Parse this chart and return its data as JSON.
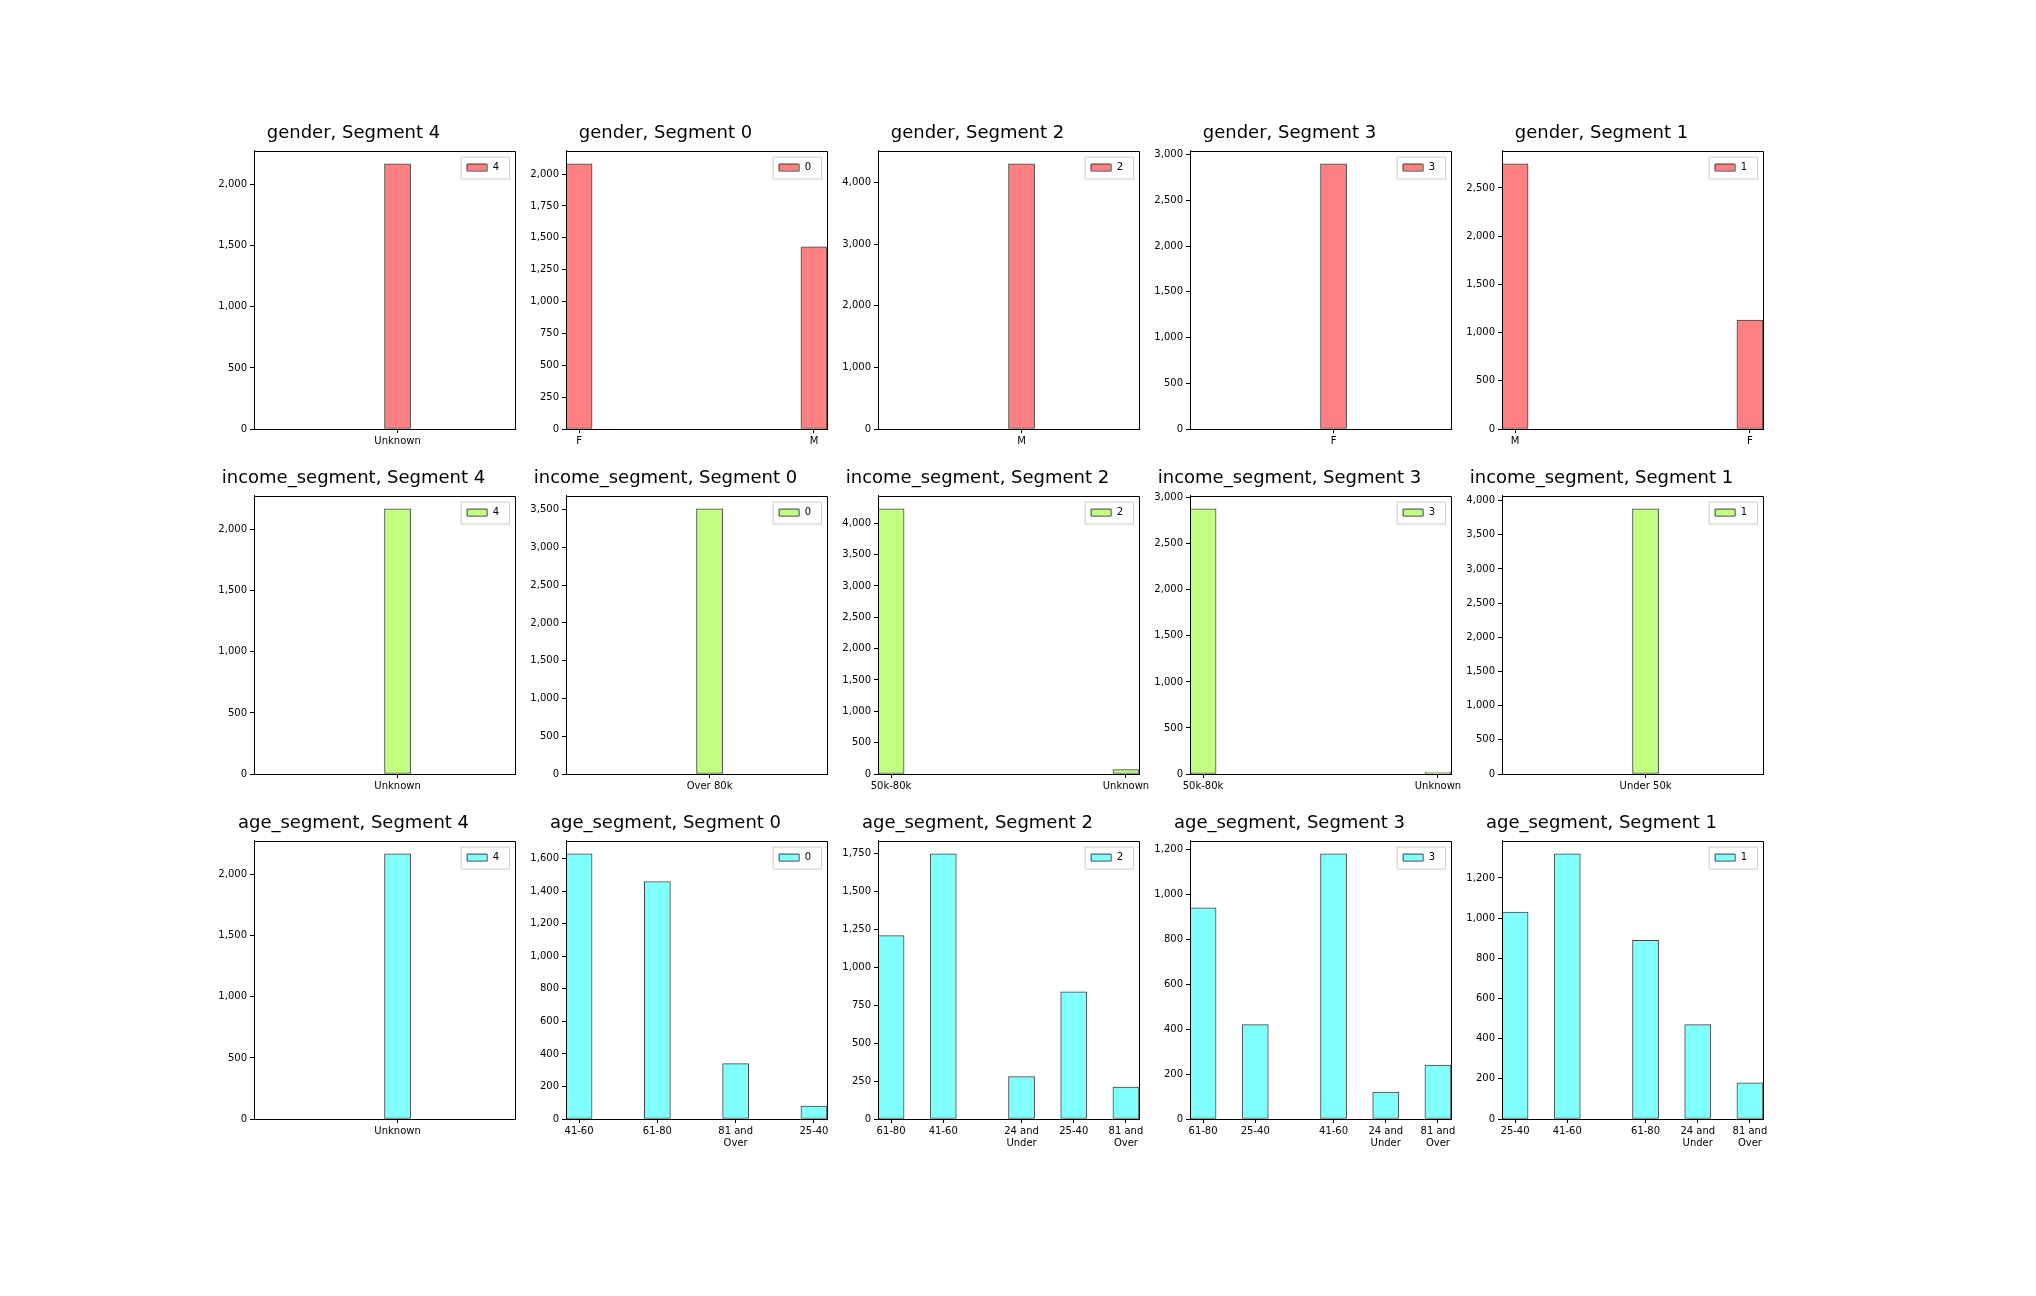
{
  "chart_data": [
    {
      "type": "bar",
      "title": "gender, Segment 4",
      "categories": [
        null,
        null,
        null,
        null,
        null,
        "Unknown",
        null,
        null,
        null,
        null
      ],
      "series": [
        {
          "name": "4",
          "color": "#ff8080",
          "values": [
            null,
            null,
            null,
            null,
            null,
            2170,
            null,
            null,
            null,
            null
          ]
        }
      ],
      "ylim": [
        0,
        2278.5
      ],
      "yticks": [
        0,
        500,
        {
          "value": 1000,
          "label": "1,000"
        },
        {
          "value": 1500,
          "label": "1,500"
        },
        {
          "value": 2000,
          "label": "2,000"
        }
      ],
      "legend": "top right"
    },
    {
      "type": "bar",
      "title": "gender, Segment 0",
      "categories": [
        "F",
        null,
        null,
        null,
        null,
        null,
        null,
        null,
        null,
        "M"
      ],
      "series": [
        {
          "name": "0",
          "color": "#ff8080",
          "values": [
            2080,
            null,
            null,
            null,
            null,
            null,
            null,
            null,
            null,
            1430
          ]
        }
      ],
      "ylim": [
        0,
        2184
      ],
      "yticks": [
        0,
        250,
        500,
        750,
        {
          "value": 1000,
          "label": "1,000"
        },
        {
          "value": 1250,
          "label": "1,250"
        },
        {
          "value": 1500,
          "label": "1,500"
        },
        {
          "value": 1750,
          "label": "1,750"
        },
        {
          "value": 2000,
          "label": "2,000"
        }
      ],
      "legend": "top right"
    },
    {
      "type": "bar",
      "title": "gender, Segment 2",
      "categories": [
        null,
        null,
        null,
        null,
        null,
        "M",
        null,
        null,
        null,
        null
      ],
      "series": [
        {
          "name": "2",
          "color": "#ff8080",
          "values": [
            null,
            null,
            null,
            null,
            null,
            4300,
            null,
            null,
            null,
            null
          ]
        }
      ],
      "ylim": [
        0,
        4515
      ],
      "yticks": [
        0,
        {
          "value": 1000,
          "label": "1,000"
        },
        {
          "value": 2000,
          "label": "2,000"
        },
        {
          "value": 3000,
          "label": "3,000"
        },
        {
          "value": 4000,
          "label": "4,000"
        }
      ],
      "legend": "top right"
    },
    {
      "type": "bar",
      "title": "gender, Segment 3",
      "categories": [
        null,
        null,
        null,
        null,
        null,
        "F",
        null,
        null,
        null,
        null
      ],
      "series": [
        {
          "name": "3",
          "color": "#ff8080",
          "values": [
            null,
            null,
            null,
            null,
            null,
            2900,
            null,
            null,
            null,
            null
          ]
        }
      ],
      "ylim": [
        0,
        3045
      ],
      "yticks": [
        0,
        500,
        {
          "value": 1000,
          "label": "1,000"
        },
        {
          "value": 1500,
          "label": "1,500"
        },
        {
          "value": 2000,
          "label": "2,000"
        },
        {
          "value": 2500,
          "label": "2,500"
        },
        {
          "value": 3000,
          "label": "3,000"
        }
      ],
      "legend": "top right"
    },
    {
      "type": "bar",
      "title": "gender, Segment 1",
      "categories": [
        "M",
        null,
        null,
        null,
        null,
        null,
        null,
        null,
        null,
        "F"
      ],
      "series": [
        {
          "name": "1",
          "color": "#ff8080",
          "values": [
            2750,
            null,
            null,
            null,
            null,
            null,
            null,
            null,
            null,
            1130
          ]
        }
      ],
      "ylim": [
        0,
        2887.5
      ],
      "yticks": [
        0,
        500,
        {
          "value": 1000,
          "label": "1,000"
        },
        {
          "value": 1500,
          "label": "1,500"
        },
        {
          "value": 2000,
          "label": "2,000"
        },
        {
          "value": 2500,
          "label": "2,500"
        }
      ],
      "legend": "top right"
    },
    {
      "type": "bar",
      "title": "income_segment, Segment 4",
      "categories": [
        null,
        null,
        null,
        null,
        null,
        "Unknown",
        null,
        null,
        null,
        null
      ],
      "series": [
        {
          "name": "4",
          "color": "#c0ff80",
          "values": [
            null,
            null,
            null,
            null,
            null,
            2170,
            null,
            null,
            null,
            null
          ]
        }
      ],
      "ylim": [
        0,
        2278.5
      ],
      "yticks": [
        0,
        500,
        {
          "value": 1000,
          "label": "1,000"
        },
        {
          "value": 1500,
          "label": "1,500"
        },
        {
          "value": 2000,
          "label": "2,000"
        }
      ],
      "legend": "top right"
    },
    {
      "type": "bar",
      "title": "income_segment, Segment 0",
      "categories": [
        null,
        null,
        null,
        null,
        null,
        "Over 80k",
        null,
        null,
        null,
        null
      ],
      "series": [
        {
          "name": "0",
          "color": "#c0ff80",
          "values": [
            null,
            null,
            null,
            null,
            null,
            3510,
            null,
            null,
            null,
            null
          ]
        }
      ],
      "ylim": [
        0,
        3685.5
      ],
      "yticks": [
        0,
        500,
        {
          "value": 1000,
          "label": "1,000"
        },
        {
          "value": 1500,
          "label": "1,500"
        },
        {
          "value": 2000,
          "label": "2,000"
        },
        {
          "value": 2500,
          "label": "2,500"
        },
        {
          "value": 3000,
          "label": "3,000"
        },
        {
          "value": 3500,
          "label": "3,500"
        }
      ],
      "legend": "top right"
    },
    {
      "type": "bar",
      "title": "income_segment, Segment 2",
      "categories": [
        "50k-80k",
        null,
        null,
        null,
        null,
        null,
        null,
        null,
        null,
        "Unknown"
      ],
      "series": [
        {
          "name": "2",
          "color": "#c0ff80",
          "values": [
            4230,
            null,
            null,
            null,
            null,
            null,
            null,
            null,
            null,
            70
          ]
        }
      ],
      "ylim": [
        0,
        4441.5
      ],
      "yticks": [
        0,
        500,
        {
          "value": 1000,
          "label": "1,000"
        },
        {
          "value": 1500,
          "label": "1,500"
        },
        {
          "value": 2000,
          "label": "2,000"
        },
        {
          "value": 2500,
          "label": "2,500"
        },
        {
          "value": 3000,
          "label": "3,000"
        },
        {
          "value": 3500,
          "label": "3,500"
        },
        {
          "value": 4000,
          "label": "4,000"
        }
      ],
      "legend": "top right"
    },
    {
      "type": "bar",
      "title": "income_segment, Segment 3",
      "categories": [
        "50k-80k",
        null,
        null,
        null,
        null,
        null,
        null,
        null,
        null,
        "Unknown"
      ],
      "series": [
        {
          "name": "3",
          "color": "#c0ff80",
          "values": [
            2880,
            null,
            null,
            null,
            null,
            null,
            null,
            null,
            null,
            20
          ]
        }
      ],
      "ylim": [
        0,
        3024
      ],
      "yticks": [
        0,
        500,
        {
          "value": 1000,
          "label": "1,000"
        },
        {
          "value": 1500,
          "label": "1,500"
        },
        {
          "value": 2000,
          "label": "2,000"
        },
        {
          "value": 2500,
          "label": "2,500"
        },
        {
          "value": 3000,
          "label": "3,000"
        }
      ],
      "legend": "top right"
    },
    {
      "type": "bar",
      "title": "income_segment, Segment 1",
      "categories": [
        null,
        null,
        null,
        null,
        null,
        "Under 50k",
        null,
        null,
        null,
        null
      ],
      "series": [
        {
          "name": "1",
          "color": "#c0ff80",
          "values": [
            null,
            null,
            null,
            null,
            null,
            3880,
            null,
            null,
            null,
            null
          ]
        }
      ],
      "ylim": [
        0,
        4074
      ],
      "yticks": [
        0,
        500,
        {
          "value": 1000,
          "label": "1,000"
        },
        {
          "value": 1500,
          "label": "1,500"
        },
        {
          "value": 2000,
          "label": "2,000"
        },
        {
          "value": 2500,
          "label": "2,500"
        },
        {
          "value": 3000,
          "label": "3,000"
        },
        {
          "value": 3500,
          "label": "3,500"
        },
        {
          "value": 4000,
          "label": "4,000"
        }
      ],
      "legend": "top right"
    },
    {
      "type": "bar",
      "title": "age_segment, Segment 4",
      "categories": [
        null,
        null,
        null,
        null,
        null,
        "Unknown",
        null,
        null,
        null,
        null
      ],
      "series": [
        {
          "name": "4",
          "color": "#80ffff",
          "values": [
            null,
            null,
            null,
            null,
            null,
            2170,
            null,
            null,
            null,
            null
          ]
        }
      ],
      "ylim": [
        0,
        2278.5
      ],
      "yticks": [
        0,
        500,
        {
          "value": 1000,
          "label": "1,000"
        },
        {
          "value": 1500,
          "label": "1,500"
        },
        {
          "value": 2000,
          "label": "2,000"
        }
      ],
      "legend": "top right"
    },
    {
      "type": "bar",
      "title": "age_segment, Segment 0",
      "categories": [
        "41-60",
        null,
        null,
        "61-80",
        null,
        null,
        "81 and Over",
        null,
        null,
        "25-40"
      ],
      "series": [
        {
          "name": "0",
          "color": "#80ffff",
          "values": [
            1630,
            null,
            null,
            1460,
            null,
            null,
            340,
            null,
            null,
            80
          ]
        }
      ],
      "ylim": [
        0,
        1711.5
      ],
      "yticks": [
        0,
        200,
        400,
        600,
        800,
        {
          "value": 1000,
          "label": "1,000"
        },
        {
          "value": 1200,
          "label": "1,200"
        },
        {
          "value": 1400,
          "label": "1,400"
        },
        {
          "value": 1600,
          "label": "1,600"
        }
      ],
      "legend": "top right"
    },
    {
      "type": "bar",
      "title": "age_segment, Segment 2",
      "categories": [
        "61-80",
        null,
        "41-60",
        null,
        null,
        "24 and Under",
        null,
        "25-40",
        null,
        "81 and Over"
      ],
      "series": [
        {
          "name": "2",
          "color": "#80ffff",
          "values": [
            1210,
            null,
            1750,
            null,
            null,
            280,
            null,
            840,
            null,
            210
          ]
        }
      ],
      "ylim": [
        0,
        1837.5
      ],
      "yticks": [
        0,
        250,
        500,
        750,
        {
          "value": 1000,
          "label": "1,000"
        },
        {
          "value": 1250,
          "label": "1,250"
        },
        {
          "value": 1500,
          "label": "1,500"
        },
        {
          "value": 1750,
          "label": "1,750"
        }
      ],
      "legend": "top right"
    },
    {
      "type": "bar",
      "title": "age_segment, Segment 3",
      "categories": [
        "61-80",
        null,
        "25-40",
        null,
        null,
        "41-60",
        null,
        "24 and Under",
        null,
        "81 and Over"
      ],
      "series": [
        {
          "name": "3",
          "color": "#80ffff",
          "values": [
            940,
            null,
            420,
            null,
            null,
            1180,
            null,
            120,
            null,
            240
          ]
        }
      ],
      "ylim": [
        0,
        1239
      ],
      "yticks": [
        0,
        200,
        400,
        600,
        800,
        {
          "value": 1000,
          "label": "1,000"
        },
        {
          "value": 1200,
          "label": "1,200"
        }
      ],
      "legend": "top right"
    },
    {
      "type": "bar",
      "title": "age_segment, Segment 1",
      "categories": [
        "25-40",
        null,
        "41-60",
        null,
        null,
        "61-80",
        null,
        "24 and Under",
        null,
        "81 and Over"
      ],
      "series": [
        {
          "name": "1",
          "color": "#80ffff",
          "values": [
            1030,
            null,
            1320,
            null,
            null,
            890,
            null,
            470,
            null,
            180
          ]
        }
      ],
      "ylim": [
        0,
        1386
      ],
      "yticks": [
        0,
        200,
        400,
        600,
        800,
        {
          "value": 1000,
          "label": "1,000"
        },
        {
          "value": 1200,
          "label": "1,200"
        }
      ],
      "legend": "top right"
    }
  ]
}
